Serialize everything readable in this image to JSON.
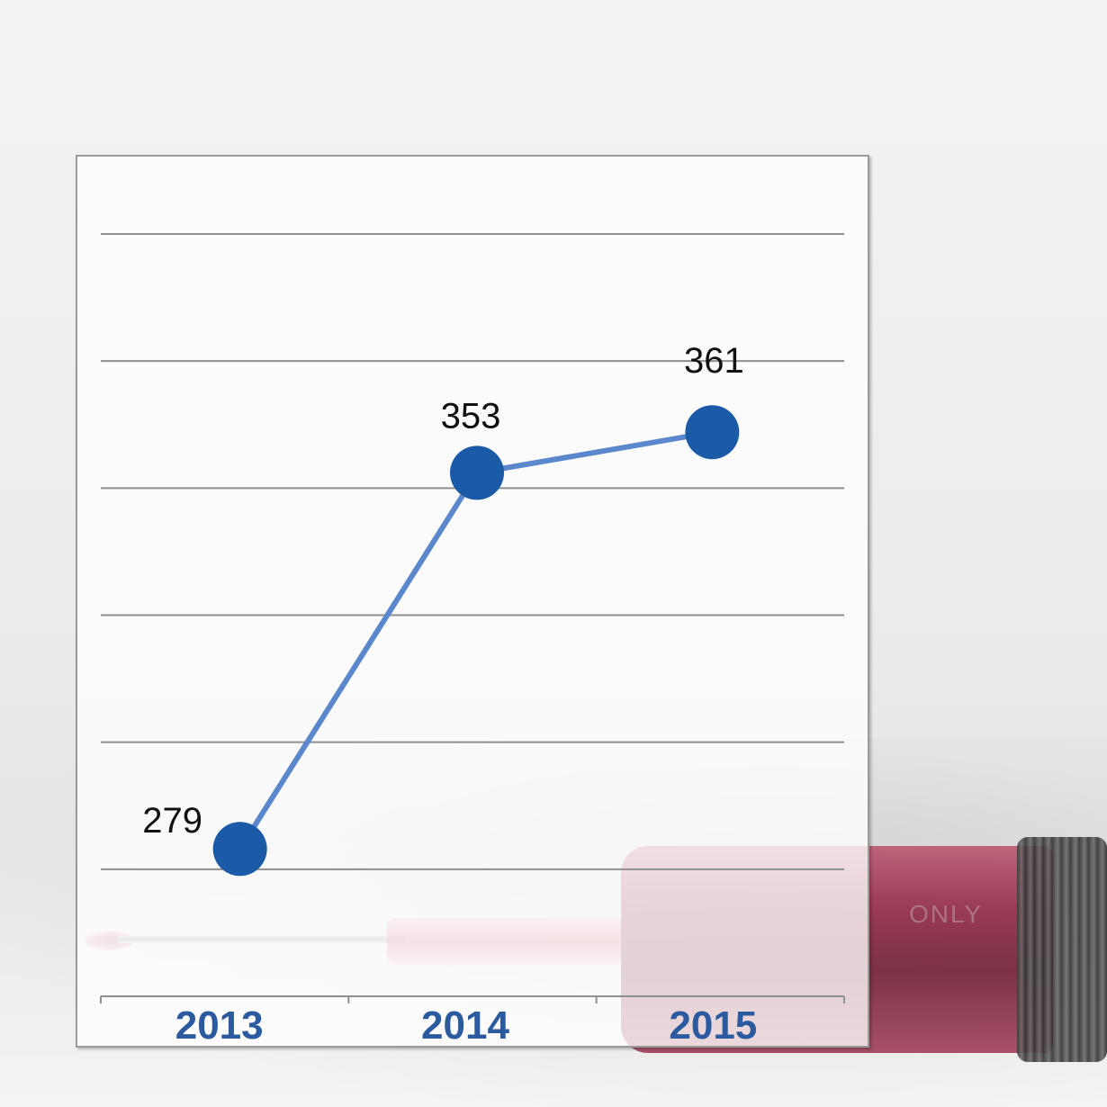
{
  "chart_data": {
    "type": "line",
    "title": "",
    "xlabel": "",
    "ylabel": "",
    "categories": [
      "2013",
      "2014",
      "2015"
    ],
    "series": [
      {
        "values": [
          279,
          353,
          361
        ]
      }
    ],
    "data_labels": [
      "279",
      "353",
      "361"
    ],
    "ylim": [
      250,
      400
    ],
    "grid": true,
    "legend": "none",
    "colors": {
      "line": "#5b87cc",
      "marker": "#1a5aa6",
      "tick_label": "#2b5b9e",
      "data_label": "#111111",
      "grid": "#8f8f8f"
    }
  },
  "background": {
    "syringe_print": "ONLY"
  }
}
